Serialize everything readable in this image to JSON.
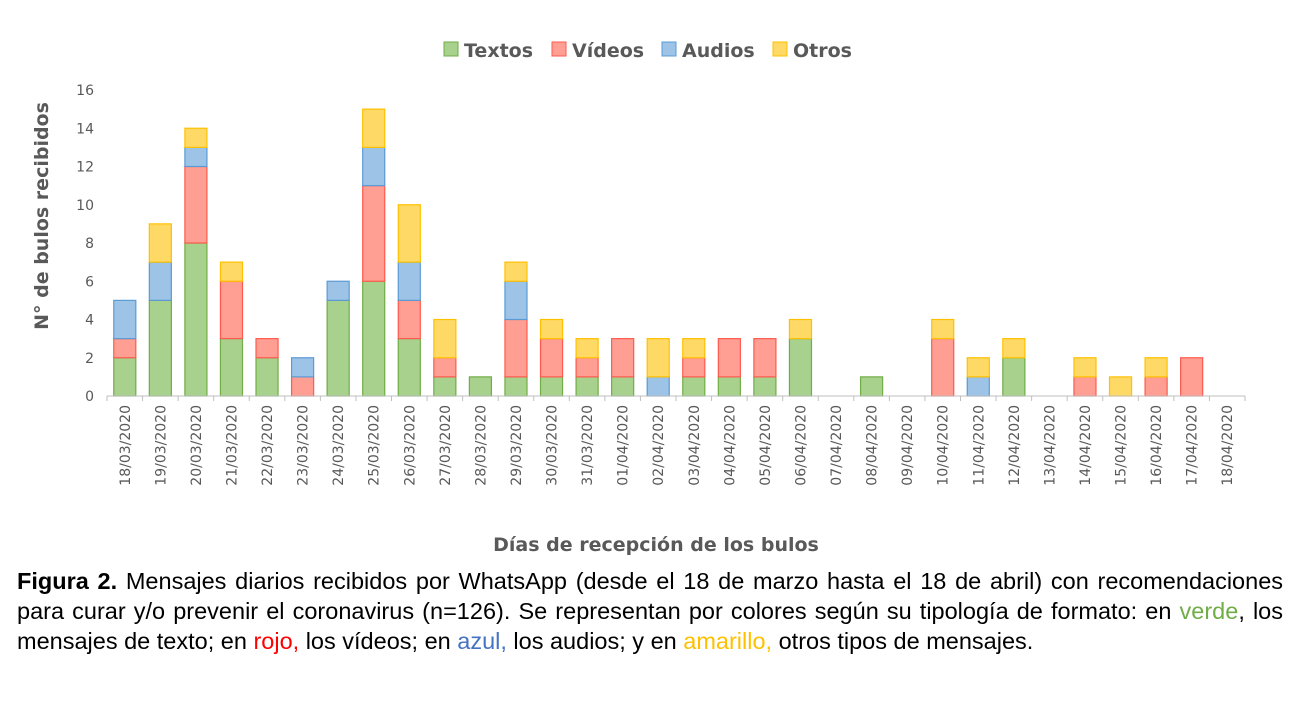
{
  "chart_data": {
    "type": "bar",
    "stacked": true,
    "title": "",
    "xlabel": "Días de recepción de los bulos",
    "ylabel": "N° de bulos recibidos",
    "ylim": [
      0,
      16
    ],
    "yticks": [
      0,
      2,
      4,
      6,
      8,
      10,
      12,
      14,
      16
    ],
    "grid": false,
    "legend_position": "top",
    "categories": [
      "18/03/2020",
      "19/03/2020",
      "20/03/2020",
      "21/03/2020",
      "22/03/2020",
      "23/03/2020",
      "24/03/2020",
      "25/03/2020",
      "26/03/2020",
      "27/03/2020",
      "28/03/2020",
      "29/03/2020",
      "30/03/2020",
      "31/03/2020",
      "01/04/2020",
      "02/04/2020",
      "03/04/2020",
      "04/04/2020",
      "05/04/2020",
      "06/04/2020",
      "07/04/2020",
      "08/04/2020",
      "09/04/2020",
      "10/04/2020",
      "11/04/2020",
      "12/04/2020",
      "13/04/2020",
      "14/04/2020",
      "15/04/2020",
      "16/04/2020",
      "17/04/2020",
      "18/04/2020"
    ],
    "series": [
      {
        "name": "Textos",
        "color": "#a9d18e",
        "stroke": "#70ad47",
        "values": [
          2,
          5,
          8,
          3,
          2,
          0,
          5,
          6,
          3,
          1,
          1,
          1,
          1,
          1,
          1,
          0,
          1,
          1,
          1,
          3,
          0,
          1,
          0,
          0,
          0,
          2,
          0,
          0,
          0,
          0,
          0,
          0
        ]
      },
      {
        "name": "Vídeos",
        "color": "#ff9f94",
        "stroke": "#ff5a4d",
        "values": [
          1,
          0,
          4,
          3,
          1,
          1,
          0,
          5,
          2,
          1,
          0,
          3,
          2,
          1,
          2,
          0,
          1,
          2,
          2,
          0,
          0,
          0,
          0,
          3,
          0,
          0,
          0,
          1,
          0,
          1,
          2,
          0
        ]
      },
      {
        "name": "Audios",
        "color": "#9dc3e6",
        "stroke": "#5b9bd5",
        "values": [
          2,
          2,
          1,
          0,
          0,
          1,
          1,
          2,
          2,
          0,
          0,
          2,
          0,
          0,
          0,
          1,
          0,
          0,
          0,
          0,
          0,
          0,
          0,
          0,
          1,
          0,
          0,
          0,
          0,
          0,
          0,
          0
        ]
      },
      {
        "name": "Otros",
        "color": "#ffd966",
        "stroke": "#ffc000",
        "values": [
          0,
          2,
          1,
          1,
          0,
          0,
          0,
          2,
          3,
          2,
          0,
          1,
          1,
          1,
          0,
          2,
          1,
          0,
          0,
          1,
          0,
          0,
          0,
          1,
          1,
          1,
          0,
          1,
          1,
          1,
          0,
          0
        ]
      }
    ]
  },
  "caption": {
    "lead": "Figura 2.",
    "text_1": " Mensajes diarios recibidos por WhatsApp (desde el 18 de marzo hasta el 18 de abril) con recomendaciones para curar y/o prevenir el coronavirus (n=126). Se representan por colores según su tipología de formato:  en ",
    "green_word": "verde",
    "text_2": ", los mensajes de texto; en ",
    "red_word": "rojo,",
    "text_3": " los vídeos; en ",
    "blue_word": "azul,",
    "text_4": " los audios; y en ",
    "yellow_word": "amarillo,",
    "text_5": " otros tipos de mensajes.",
    "green_color": "#70ad47",
    "red_color": "#ff0000",
    "blue_color": "#4472c4",
    "yellow_color": "#ffc000"
  }
}
